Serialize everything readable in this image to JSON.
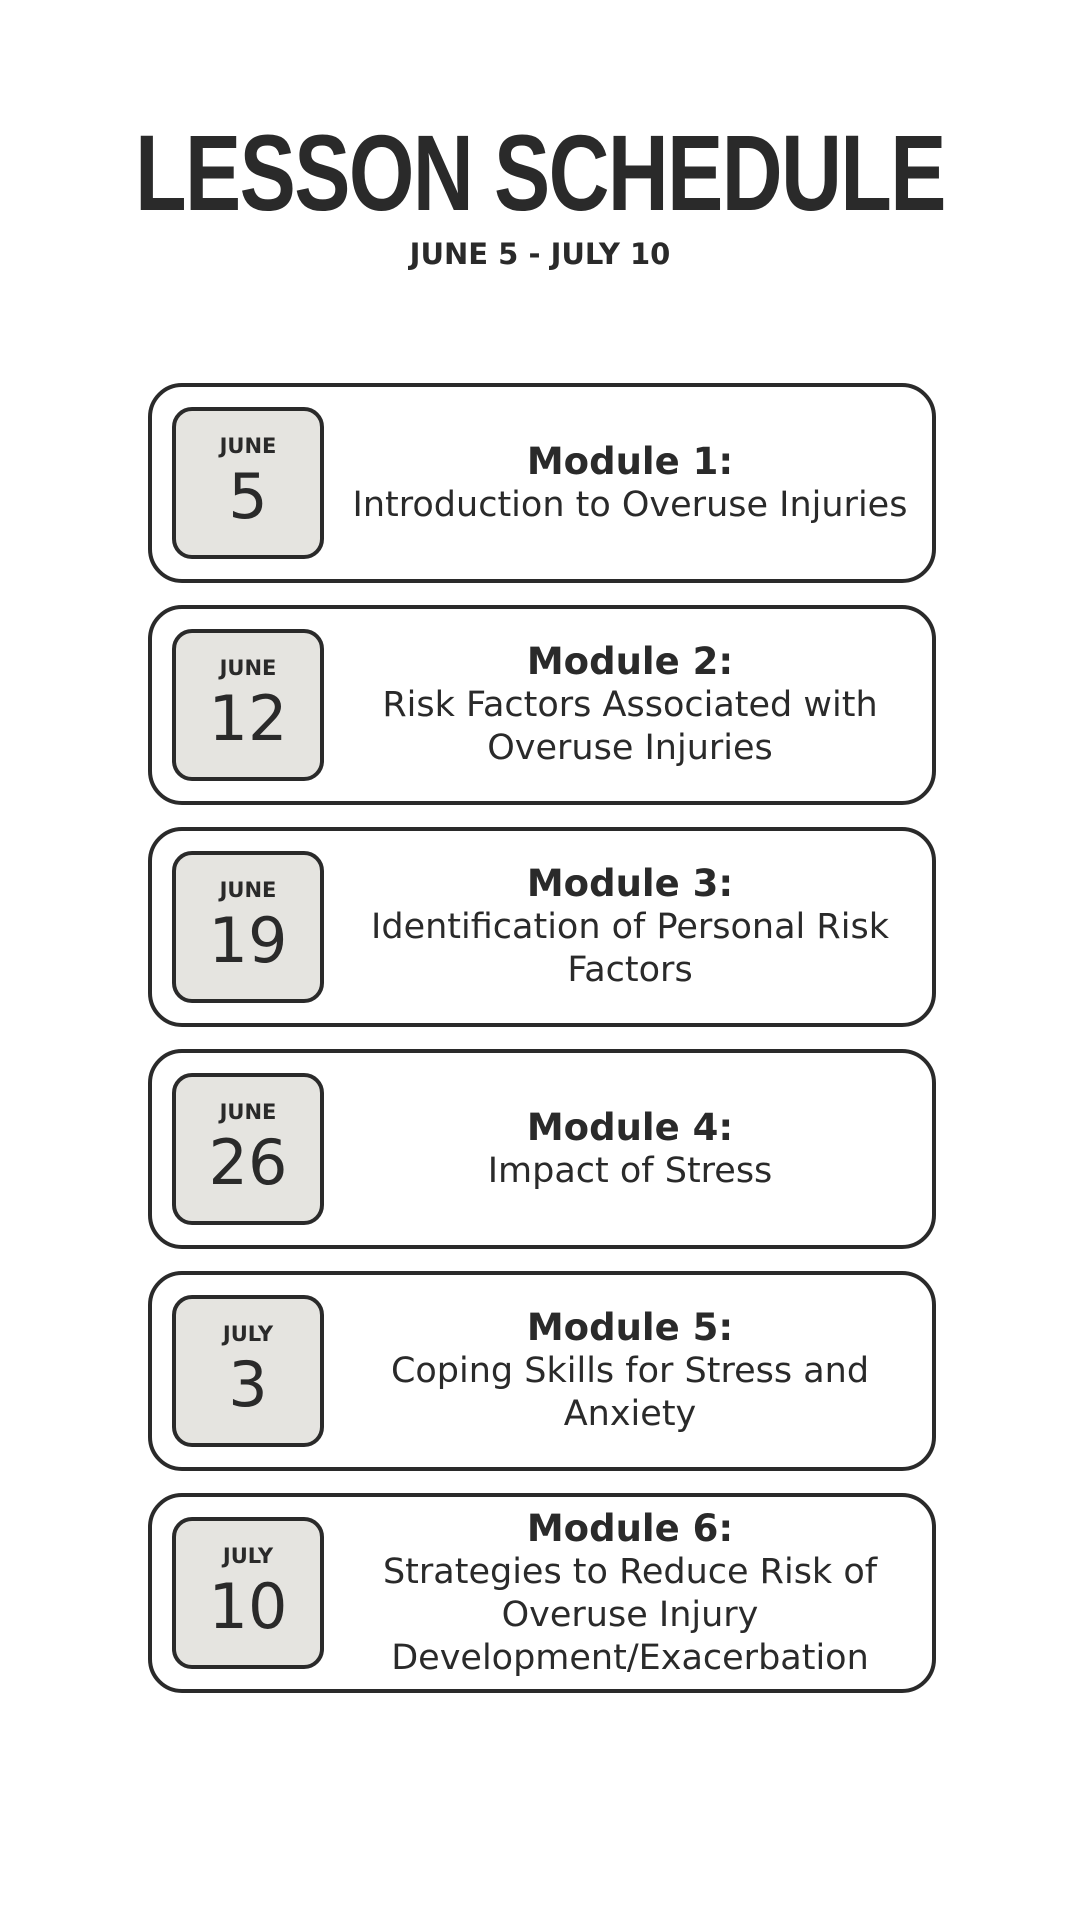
{
  "header": {
    "title": "LESSON SCHEDULE",
    "date_range": "JUNE 5 - JULY 10"
  },
  "modules": [
    {
      "month": "JUNE",
      "day": "5",
      "heading": "Module 1:",
      "description": "Introduction to Overuse Injuries"
    },
    {
      "month": "JUNE",
      "day": "12",
      "heading": "Module 2:",
      "description": "Risk Factors Associated with Overuse Injuries"
    },
    {
      "month": "JUNE",
      "day": "19",
      "heading": "Module 3:",
      "description": "Identification of Personal Risk Factors"
    },
    {
      "month": "JUNE",
      "day": "26",
      "heading": "Module 4:",
      "description": "Impact of Stress"
    },
    {
      "month": "JULY",
      "day": "3",
      "heading": "Module 5:",
      "description": "Coping Skills for Stress and Anxiety"
    },
    {
      "month": "JULY",
      "day": "10",
      "heading": "Module 6:",
      "description": "Strategies to Reduce Risk of Overuse Injury Development/Exacerbation"
    }
  ],
  "colors": {
    "text": "#2a2a2a",
    "date_box_fill": "#e5e4e0",
    "background": "#ffffff"
  }
}
